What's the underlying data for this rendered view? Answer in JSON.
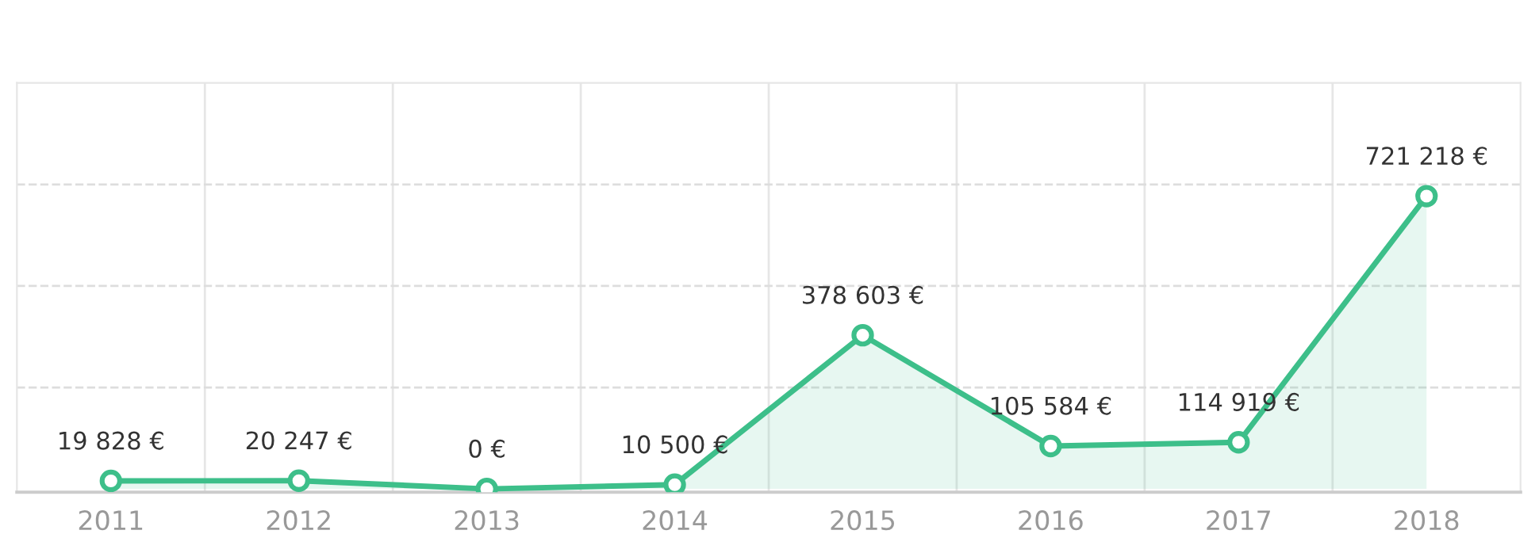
{
  "chart_data": {
    "type": "area",
    "categories": [
      "2011",
      "2012",
      "2013",
      "2014",
      "2015",
      "2016",
      "2017",
      "2018"
    ],
    "series": [
      {
        "color": "#3dbf8a",
        "values": [
          19828,
          20247,
          0,
          10500,
          378603,
          105584,
          114919,
          721218
        ],
        "value_labels": [
          "19 828 €",
          "20 247 €",
          "0 €",
          "10 500 €",
          "378 603 €",
          "105 584 €",
          "114 919 €",
          "721 218 €"
        ]
      }
    ],
    "ylim": [
      -8000,
      1000000
    ],
    "yticks": [
      {
        "value": 250000,
        "label": null
      },
      {
        "value": 500000,
        "label": null
      },
      {
        "value": 750000,
        "label": null
      }
    ],
    "tick_labels": "x",
    "grid": true,
    "marker": "circle",
    "line_style": "solid",
    "legend": false
  }
}
